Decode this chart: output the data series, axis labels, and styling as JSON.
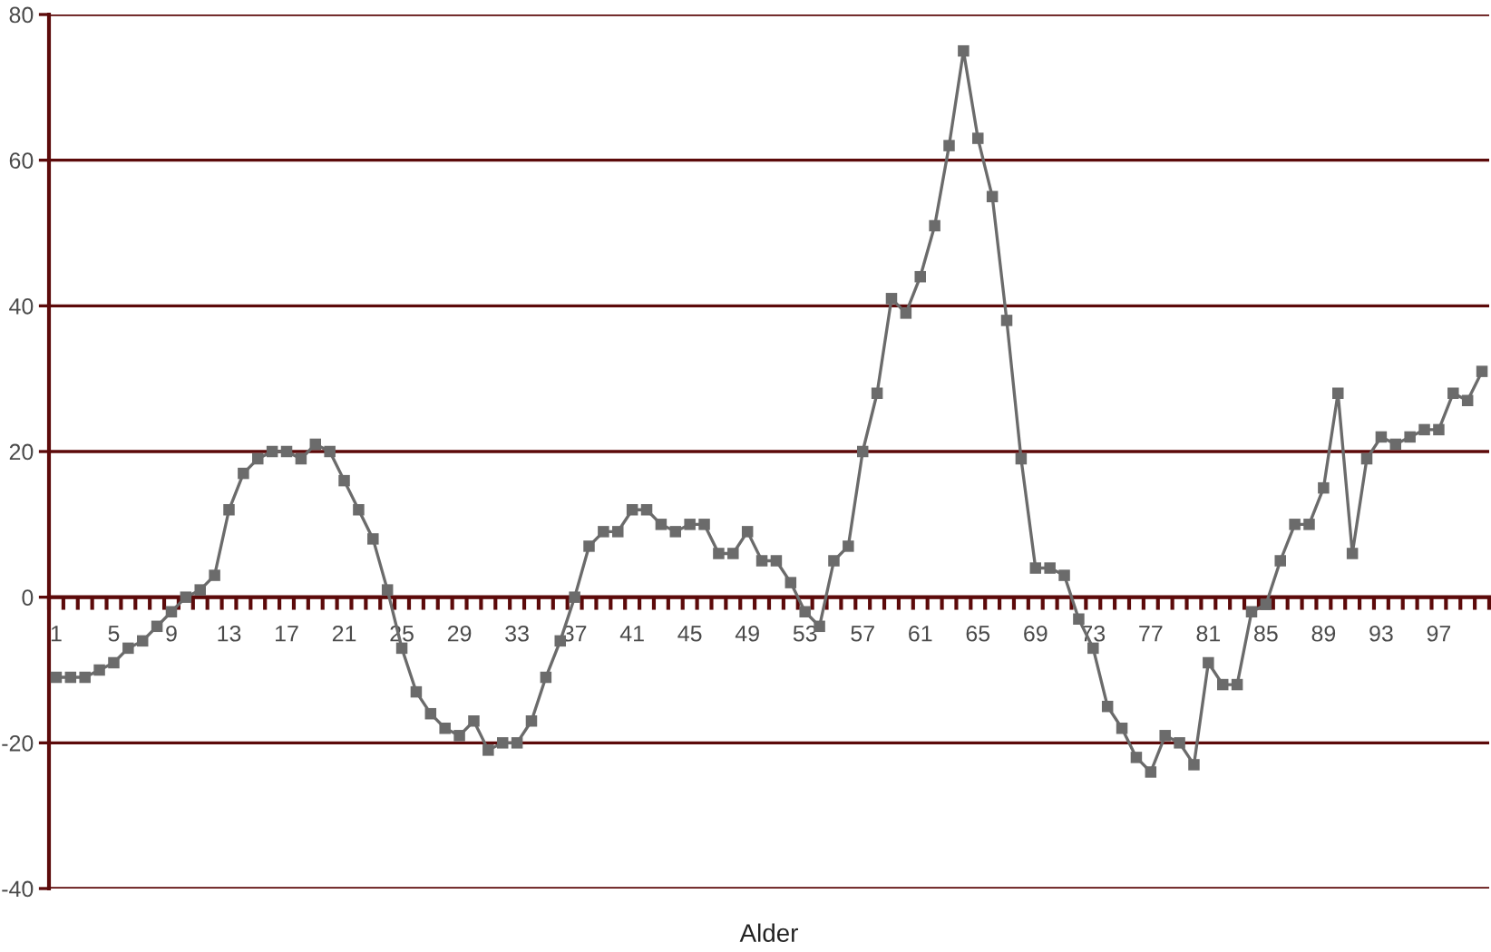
{
  "chart_data": {
    "type": "line",
    "xlabel": "Alder",
    "categories": [
      "1",
      null,
      null,
      null,
      "5",
      null,
      null,
      null,
      "9",
      null,
      null,
      null,
      "13",
      null,
      null,
      null,
      "17",
      null,
      null,
      null,
      "21",
      null,
      null,
      null,
      "25",
      null,
      null,
      null,
      "29",
      null,
      null,
      null,
      "33",
      null,
      null,
      null,
      "37",
      null,
      null,
      null,
      "41",
      null,
      null,
      null,
      "45",
      null,
      null,
      null,
      "49",
      null,
      null,
      null,
      "53",
      null,
      null,
      null,
      "57",
      null,
      null,
      null,
      "61",
      null,
      null,
      null,
      "65",
      null,
      null,
      null,
      "69",
      null,
      null,
      null,
      "73",
      null,
      null,
      null,
      "77",
      null,
      null,
      null,
      "81",
      null,
      null,
      null,
      "85",
      null,
      null,
      null,
      "89",
      null,
      null,
      null,
      "93",
      null,
      null,
      null,
      "97",
      null,
      null,
      null
    ],
    "values": [
      -11,
      -11,
      -11,
      -10,
      -9,
      -7,
      -6,
      -4,
      -2,
      0,
      1,
      3,
      12,
      17,
      19,
      20,
      20,
      19,
      21,
      20,
      16,
      12,
      8,
      1,
      -7,
      -13,
      -16,
      -18,
      -19,
      -17,
      -21,
      -20,
      -20,
      -17,
      -11,
      -6,
      0,
      7,
      9,
      9,
      12,
      12,
      10,
      9,
      10,
      10,
      6,
      6,
      9,
      5,
      5,
      2,
      -2,
      -4,
      5,
      7,
      20,
      28,
      41,
      39,
      44,
      51,
      62,
      75,
      63,
      55,
      38,
      19,
      4,
      4,
      3,
      -3,
      -7,
      -15,
      -18,
      -22,
      -24,
      -19,
      -20,
      -23,
      -9,
      -12,
      -12,
      -2,
      -1,
      5,
      10,
      10,
      15,
      28,
      6,
      19,
      22,
      21,
      22,
      23,
      23,
      28,
      27,
      31
    ],
    "color": "#6b6b6b",
    "ylim": [
      -40,
      80
    ],
    "yticks": [
      -40,
      -20,
      0,
      20,
      40,
      60,
      80
    ],
    "grid": "y",
    "marker": "square",
    "line_style": "solid"
  }
}
